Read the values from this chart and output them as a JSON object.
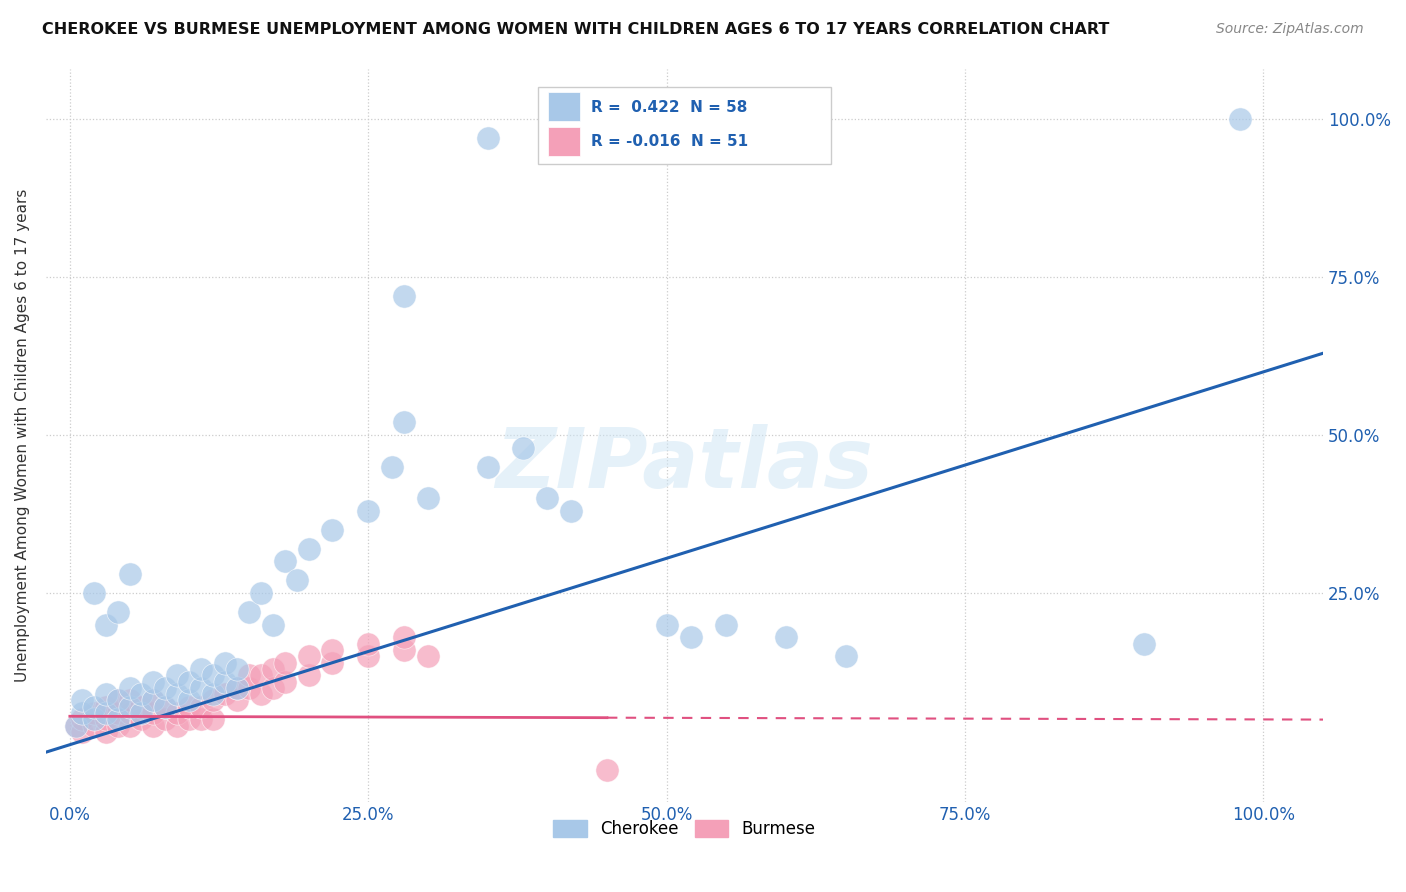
{
  "title": "CHEROKEE VS BURMESE UNEMPLOYMENT AMONG WOMEN WITH CHILDREN AGES 6 TO 17 YEARS CORRELATION CHART",
  "source": "Source: ZipAtlas.com",
  "ylabel": "Unemployment Among Women with Children Ages 6 to 17 years",
  "watermark": "ZIPatlas",
  "cherokee_r": 0.422,
  "cherokee_n": 58,
  "burmese_r": -0.016,
  "burmese_n": 51,
  "cherokee_color": "#a8c8e8",
  "burmese_color": "#f4a0b8",
  "cherokee_line_color": "#2060b0",
  "burmese_line_color": "#e05080",
  "background_color": "#ffffff",
  "xlim": [
    -0.02,
    1.05
  ],
  "ylim": [
    -0.08,
    1.08
  ],
  "xtick_vals": [
    0.0,
    0.25,
    0.5,
    0.75,
    1.0
  ],
  "xtick_labels": [
    "0.0%",
    "25.0%",
    "50.0%",
    "75.0%",
    "100.0%"
  ],
  "ytick_vals": [
    0.25,
    0.5,
    0.75,
    1.0
  ],
  "ytick_labels": [
    "25.0%",
    "50.0%",
    "75.0%",
    "100.0%"
  ]
}
